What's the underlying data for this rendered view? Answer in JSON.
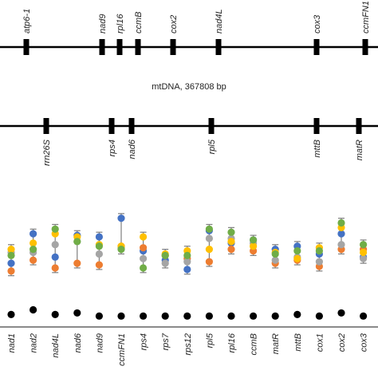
{
  "colors": {
    "line": "#000000",
    "series": [
      "#4472C4",
      "#ED7D31",
      "#A5A5A5",
      "#FFC000",
      "#70AD47",
      "#000000"
    ],
    "error_bar": "#7f7f7f"
  },
  "map": {
    "center_label": "mtDNA, 367808 bp",
    "top_genes": [
      "atp6-1",
      "nad9",
      "rpl16",
      "ccmB",
      "cox2",
      "nad4L",
      "cox3",
      "ccmFN1"
    ],
    "bottom_genes": [
      "rrn26S",
      "rps4",
      "nad6",
      "rpl5",
      "mttB",
      "matR"
    ]
  },
  "chart_data": {
    "type": "scatter",
    "title": "",
    "xlabel": "",
    "ylabel": "",
    "categories": [
      "nad1",
      "nad2",
      "nad4L",
      "nad6",
      "nad9",
      "ccmFN1",
      "rps4",
      "rps7",
      "rps12",
      "rpl5",
      "rpl16",
      "ccmB",
      "matR",
      "mttB",
      "cox1",
      "cox2",
      "cox3"
    ],
    "series": [
      {
        "values": [
          2.0,
          5.8,
          2.8,
          5.6,
          5.4,
          7.8,
          3.6,
          2.4,
          1.2,
          6.2,
          4.6,
          5.0,
          3.8,
          4.2,
          3.2,
          5.8,
          2.8
        ]
      },
      {
        "values": [
          1.0,
          2.4,
          1.4,
          2.0,
          1.8,
          4.2,
          4.0,
          3.0,
          2.6,
          2.2,
          3.8,
          3.6,
          2.0,
          2.4,
          1.6,
          3.8,
          3.8
        ]
      },
      {
        "values": [
          3.4,
          3.4,
          4.4,
          4.8,
          3.2,
          4.0,
          2.6,
          2.0,
          2.2,
          5.2,
          5.2,
          4.6,
          2.4,
          2.8,
          2.2,
          4.4,
          2.6
        ]
      },
      {
        "values": [
          3.8,
          4.6,
          5.8,
          5.4,
          4.4,
          4.2,
          5.4,
          3.2,
          3.6,
          3.8,
          4.8,
          4.2,
          3.4,
          2.6,
          4.0,
          6.6,
          3.4
        ]
      },
      {
        "values": [
          3.0,
          3.8,
          6.4,
          4.8,
          4.2,
          3.8,
          1.4,
          3.0,
          3.0,
          6.4,
          6.0,
          5.0,
          3.2,
          3.6,
          3.6,
          7.2,
          4.4
        ]
      },
      {
        "values": [
          -4.6,
          -4.0,
          -4.6,
          -4.4,
          -4.8,
          -4.8,
          -4.8,
          -4.8,
          -4.8,
          -4.8,
          -4.8,
          -4.8,
          -4.8,
          -4.6,
          -4.8,
          -4.4,
          -4.8
        ]
      }
    ],
    "ylim": [
      -6,
      9
    ],
    "grid": false
  }
}
